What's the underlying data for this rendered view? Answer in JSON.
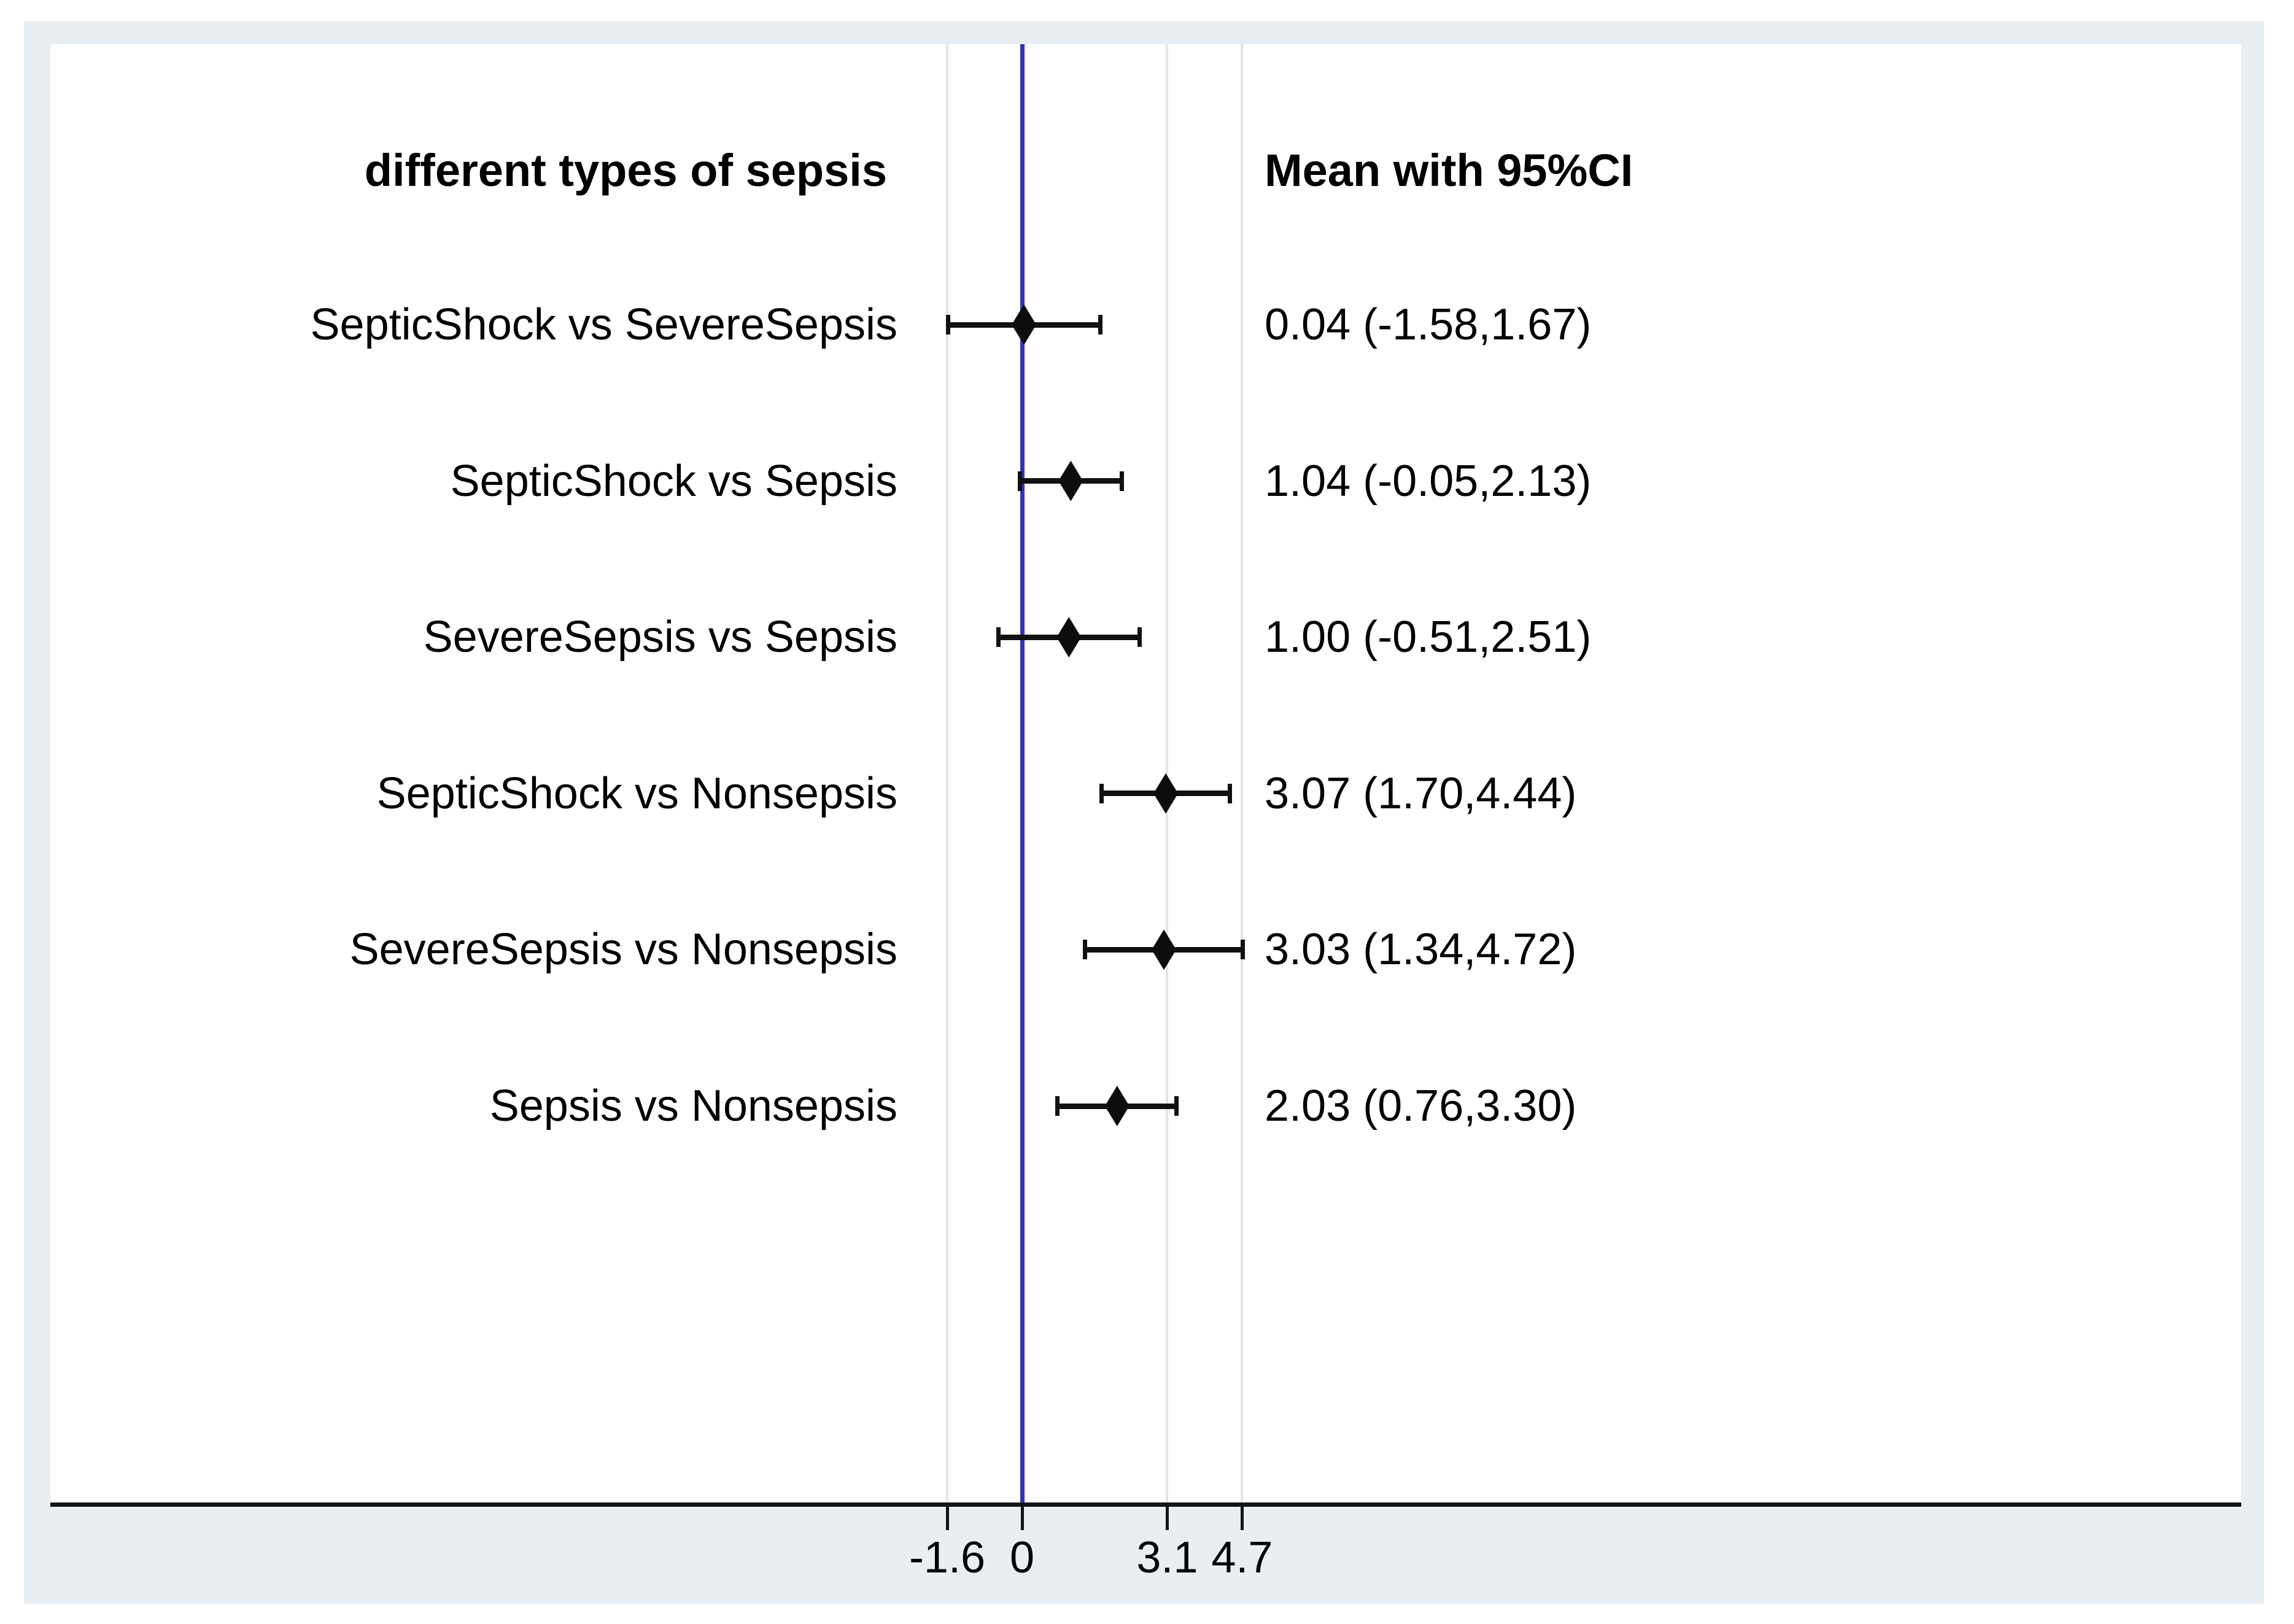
{
  "figure": {
    "left_header": "different types of sepsis",
    "right_header": "Mean with 95%CI",
    "colors": {
      "card_background": "#e8eef1",
      "plot_background": "#ffffff",
      "zero_line_blue": "#3434b4",
      "gridline_gray": "#e2e5e7",
      "ink_black": "#0d0d0d"
    }
  },
  "chart_data": {
    "type": "scatter",
    "subtype": "forest-plot",
    "title": "different types of sepsis",
    "value_column_header": "Mean with 95%CI",
    "xlabel": "",
    "ylabel": "",
    "axis": {
      "tick_values": [
        -1.6,
        0,
        3.1,
        4.7
      ],
      "tick_labels": [
        "-1.6",
        "0",
        "3.1",
        "4.7"
      ],
      "xlim": [
        -20.8,
        26.0
      ],
      "grid": "vertical-at--1.6-3.1-4.7",
      "reference_line_at": 0
    },
    "gridline_values": [
      -1.6,
      3.1,
      4.7
    ],
    "legend_position": "none",
    "rows": [
      {
        "label": "SepticShock vs SevereSepsis",
        "mean": 0.04,
        "ci_low": -1.58,
        "ci_high": 1.67,
        "display": "0.04 (-1.58,1.67)"
      },
      {
        "label": "SepticShock vs Sepsis",
        "mean": 1.04,
        "ci_low": -0.05,
        "ci_high": 2.13,
        "display": "1.04 (-0.05,2.13)"
      },
      {
        "label": "SevereSepsis vs Sepsis",
        "mean": 1.0,
        "ci_low": -0.51,
        "ci_high": 2.51,
        "display": "1.00 (-0.51,2.51)"
      },
      {
        "label": "SepticShock vs Nonsepsis",
        "mean": 3.07,
        "ci_low": 1.7,
        "ci_high": 4.44,
        "display": "3.07 (1.70,4.44)"
      },
      {
        "label": "SevereSepsis vs Nonsepsis",
        "mean": 3.03,
        "ci_low": 1.34,
        "ci_high": 4.72,
        "display": "3.03 (1.34,4.72)"
      },
      {
        "label": "Sepsis vs Nonsepsis",
        "mean": 2.03,
        "ci_low": 0.76,
        "ci_high": 3.3,
        "display": "2.03 (0.76,3.30)"
      }
    ]
  }
}
